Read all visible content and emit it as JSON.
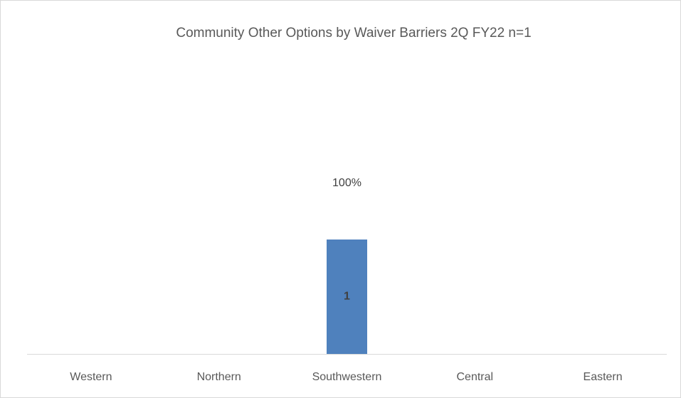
{
  "chart_data": {
    "type": "bar",
    "title": "Community Other Options by Waiver Barriers  2Q  FY22 n=1",
    "categories": [
      "Western",
      "Northern",
      "Southwestern",
      "Central",
      "Eastern"
    ],
    "values": [
      null,
      null,
      1,
      null,
      null
    ],
    "percentages": [
      null,
      null,
      100,
      null,
      null
    ],
    "percentage_labels": [
      null,
      null,
      "100%",
      null,
      null
    ],
    "color": "#4f81bd",
    "ylim": [
      0,
      2.5
    ]
  }
}
